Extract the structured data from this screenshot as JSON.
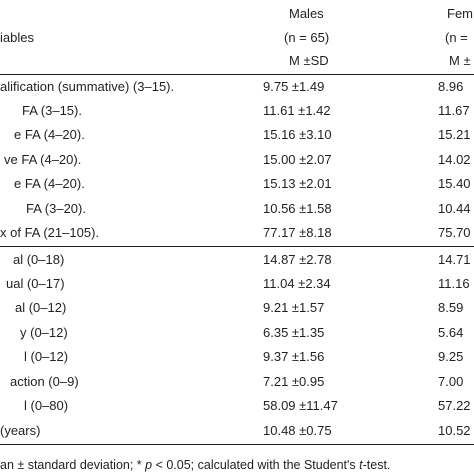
{
  "header": {
    "variables_label": "iables",
    "males_title": "Males",
    "males_n": "(n = 65)",
    "males_stat": "M ±SD",
    "females_title": "Fem",
    "females_n": "(n =",
    "females_stat": "M ±"
  },
  "rows_group1": [
    {
      "label": "alification (summative) (3–15).",
      "males": "9.75 ±1.49",
      "females": "8.96"
    },
    {
      "label": "FA (3–15).",
      "males": "11.61 ±1.42",
      "females": "11.67"
    },
    {
      "label": "e FA (4–20).",
      "males": "15.16 ±3.10",
      "females": "15.21"
    },
    {
      "label": "ve FA (4–20).",
      "males": "15.00 ±2.07",
      "females": "14.02"
    },
    {
      "label": "e FA (4–20).",
      "males": "15.13 ±2.01",
      "females": "15.40"
    },
    {
      "label": "FA (3–20).",
      "males": "10.56 ±1.58",
      "females": "10.44"
    },
    {
      "label": "x of FA (21–105).",
      "males": "77.17 ±8.18",
      "females": "75.70"
    }
  ],
  "rows_group2": [
    {
      "label": "al (0–18)",
      "males": "14.87 ±2.78",
      "females": "14.71"
    },
    {
      "label": "ual (0–17)",
      "males": "11.04 ±2.34",
      "females": "11.16"
    },
    {
      "label": "al (0–12)",
      "males": "9.21 ±1.57",
      "females": "8.59"
    },
    {
      "label": "y (0–12)",
      "males": "6.35 ±1.35",
      "females": "5.64"
    },
    {
      "label": "l (0–12)",
      "males": "9.37 ±1.56",
      "females": "9.25"
    },
    {
      "label": "action (0–9)",
      "males": "7.21 ±0.95",
      "females": "7.00"
    },
    {
      "label": "l (0–80)",
      "males": "58.09 ±11.47",
      "females": "57.22"
    },
    {
      "label": "(years)",
      "males": "10.48 ±0.75",
      "females": "10.52"
    }
  ],
  "footnote": {
    "part1": "an ± standard deviation; * ",
    "p": "p",
    "part2": " < 0.05; calculated with the Student's ",
    "t": "t",
    "part3": "-test."
  }
}
